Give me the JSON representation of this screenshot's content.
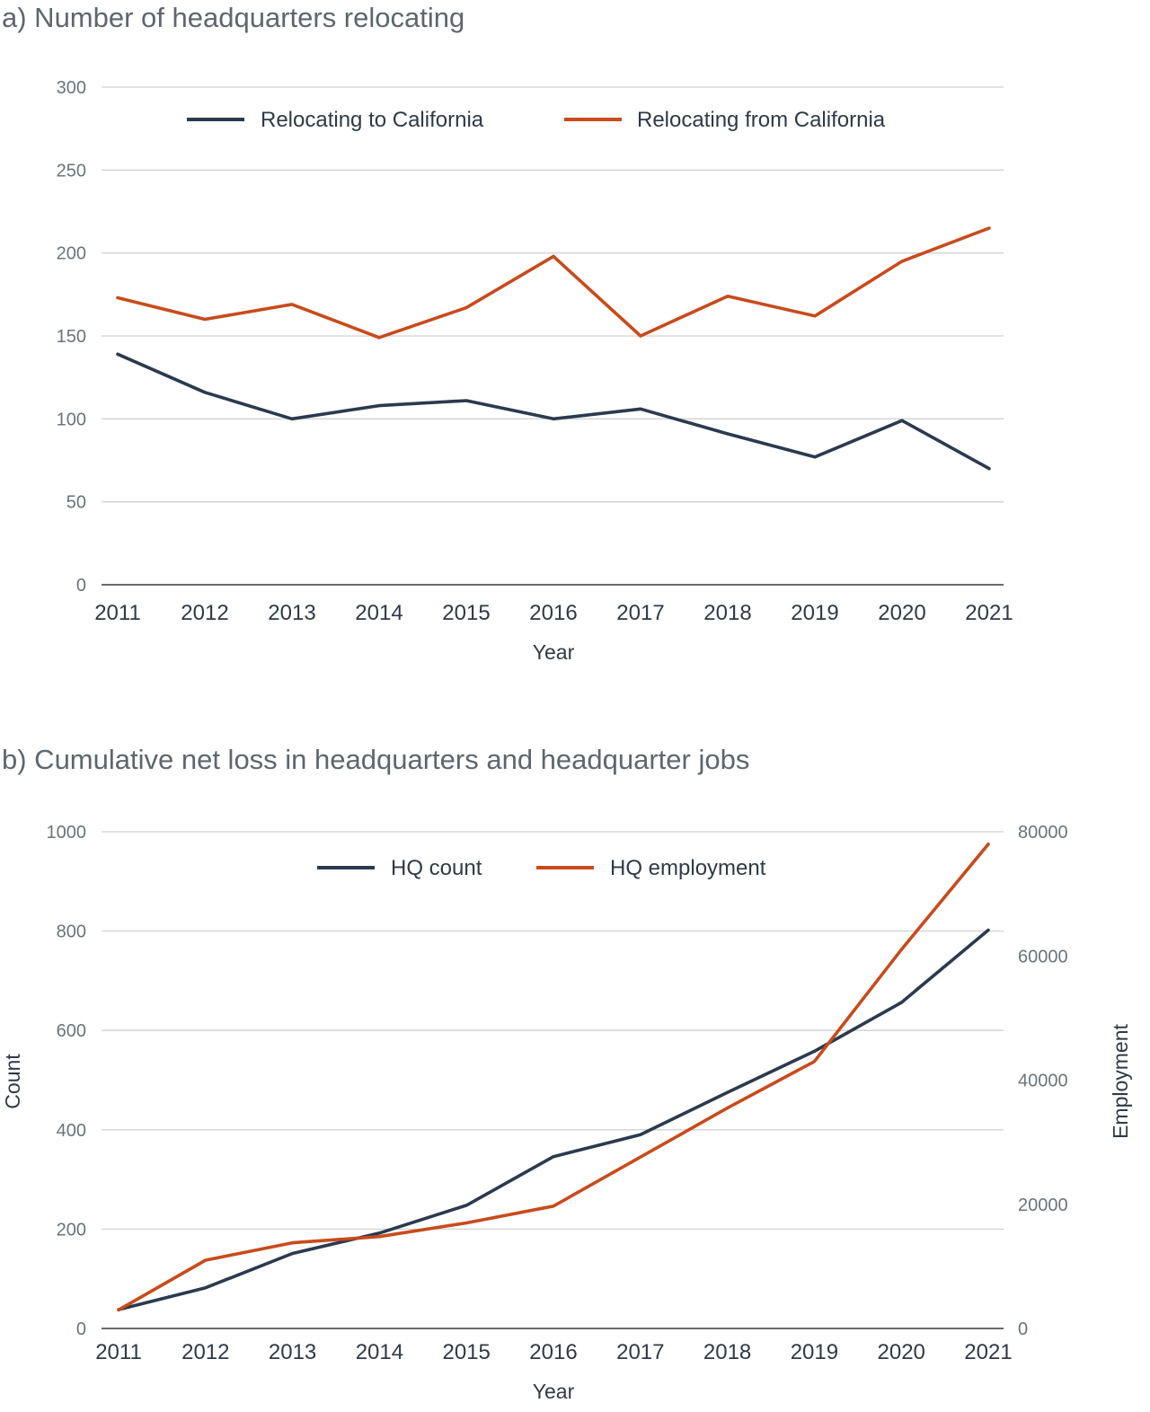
{
  "colors": {
    "navy": "#2b3a4e",
    "orange": "#c84b1c",
    "grid": "#d2d2d2",
    "axis": "#3a3a3a"
  },
  "chart_data": [
    {
      "type": "line",
      "title": "a) Number of headquarters relocating",
      "xlabel": "Year",
      "ylabel": "",
      "ylim": [
        0,
        300
      ],
      "yticks": [
        0,
        50,
        100,
        150,
        200,
        250,
        300
      ],
      "grid": true,
      "legend_position": "top-center",
      "x": [
        2011,
        2012,
        2013,
        2014,
        2015,
        2016,
        2017,
        2018,
        2019,
        2020,
        2021
      ],
      "series": [
        {
          "name": "Relocating to California",
          "color": "#2b3a4e",
          "values": [
            139,
            116,
            100,
            108,
            111,
            100,
            106,
            91,
            77,
            99,
            70
          ]
        },
        {
          "name": "Relocating from California",
          "color": "#c84b1c",
          "values": [
            173,
            160,
            169,
            149,
            167,
            198,
            150,
            174,
            162,
            195,
            215
          ]
        }
      ]
    },
    {
      "type": "line",
      "title": "b) Cumulative net loss in headquarters and headquarter jobs",
      "xlabel": "Year",
      "ylabel": "Count",
      "y2label": "Employment",
      "ylim": [
        0,
        1000
      ],
      "y2lim": [
        0,
        80000
      ],
      "yticks": [
        0,
        200,
        400,
        600,
        800,
        1000
      ],
      "y2ticks": [
        0,
        20000,
        40000,
        60000,
        80000
      ],
      "grid": true,
      "legend_position": "top-center",
      "x": [
        2011,
        2012,
        2013,
        2014,
        2015,
        2016,
        2017,
        2018,
        2019,
        2020,
        2021
      ],
      "series": [
        {
          "name": "HQ count",
          "color": "#2b3a4e",
          "axis": "left",
          "values": [
            38,
            82,
            151,
            192,
            248,
            346,
            390,
            475,
            558,
            656,
            802
          ]
        },
        {
          "name": "HQ employment",
          "color": "#c84b1c",
          "axis": "right",
          "values": [
            3000,
            11000,
            13800,
            14800,
            17000,
            19700,
            27600,
            35500,
            43000,
            61000,
            78000
          ]
        }
      ]
    }
  ]
}
